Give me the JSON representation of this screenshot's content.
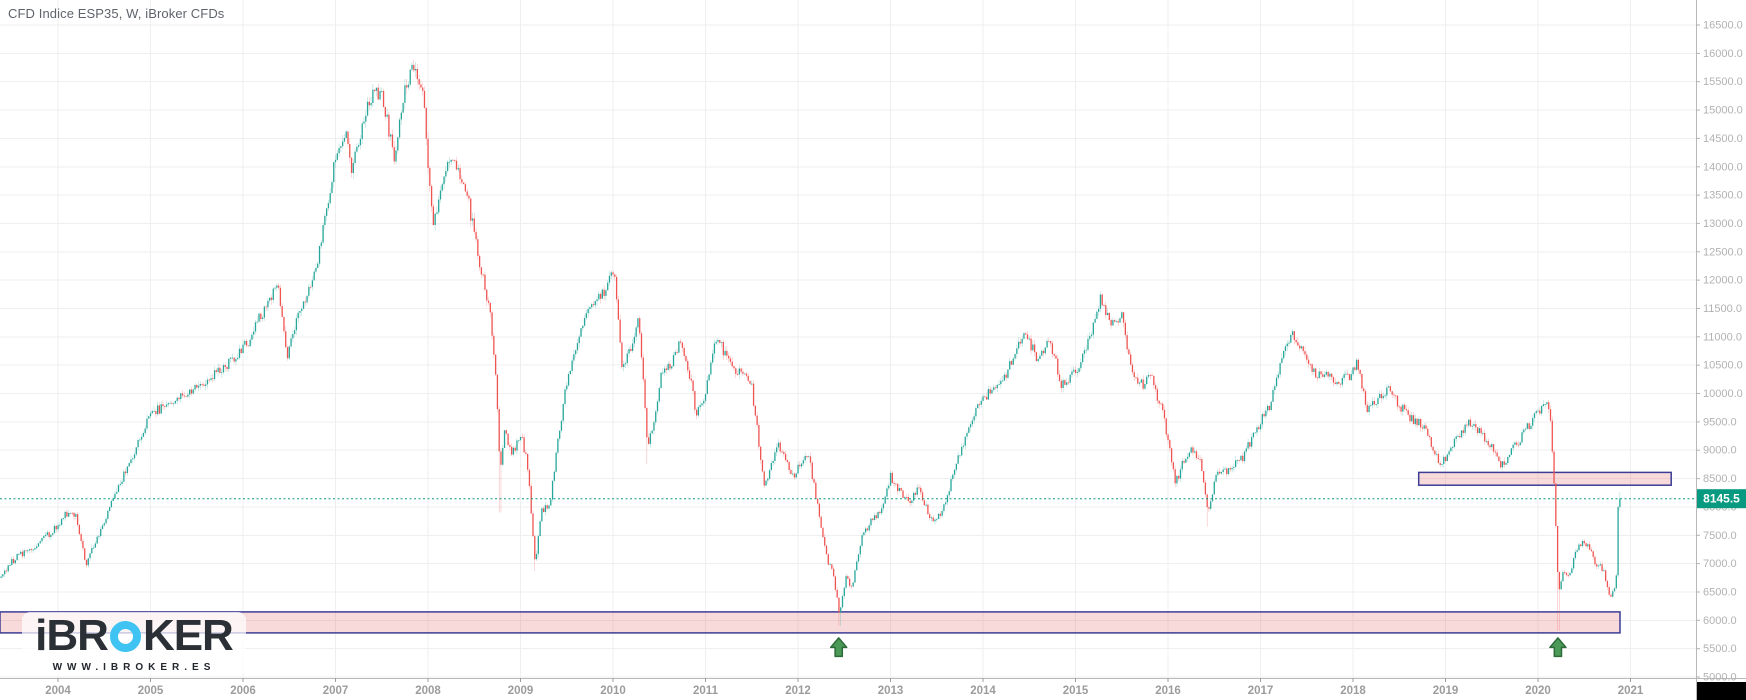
{
  "window": {
    "title": "CFD Indice ESP35, W, iBroker CFDs"
  },
  "watermark": {
    "brand_full": "iBROKER",
    "brand_prefix": "iBR",
    "brand_o": "O",
    "brand_suffix": "KER",
    "url": "WWW.IBROKER.ES"
  },
  "colors": {
    "background": "#ffffff",
    "grid": "#efefef",
    "axis_line": "#b8b8b8",
    "price_tick_text": "#b2b2b2",
    "year_tick_text": "#9c9c9c",
    "title_text": "#5f646b",
    "up_body": "#26a69a",
    "down_body": "#ef5350",
    "up_wick": "rgba(38,166,154,0.45)",
    "down_wick": "rgba(239,83,80,0.45)",
    "price_line": "#089981",
    "tag_bg": "#089981",
    "tag_text": "#ffffff",
    "zone_fill": "rgba(225,87,92,0.22)",
    "zone_border": "#3c3c96",
    "arrow_fill": "#4c9a58",
    "arrow_stroke": "#2e6b3a",
    "black_box": "#000000"
  },
  "price_axis": {
    "ticks": [
      {
        "value": 16500,
        "label": "16500.0"
      },
      {
        "value": 16000,
        "label": "16000.0"
      },
      {
        "value": 15500,
        "label": "15500.0"
      },
      {
        "value": 15000,
        "label": "15000.0"
      },
      {
        "value": 14500,
        "label": "14500.0"
      },
      {
        "value": 14000,
        "label": "14000.0"
      },
      {
        "value": 13500,
        "label": "13500.0"
      },
      {
        "value": 13000,
        "label": "13000.0"
      },
      {
        "value": 12500,
        "label": "12500.0"
      },
      {
        "value": 12000,
        "label": "12000.0"
      },
      {
        "value": 11500,
        "label": "11500.0"
      },
      {
        "value": 11000,
        "label": "11000.0"
      },
      {
        "value": 10500,
        "label": "10500.0"
      },
      {
        "value": 10000,
        "label": "10000.0"
      },
      {
        "value": 9500,
        "label": "9500.0"
      },
      {
        "value": 9000,
        "label": "9000.0"
      },
      {
        "value": 8500,
        "label": "8500.0"
      },
      {
        "value": 8000,
        "label": "8000.0"
      },
      {
        "value": 7500,
        "label": "7500.0"
      },
      {
        "value": 7000,
        "label": "7000.0"
      },
      {
        "value": 6500,
        "label": "6500.0"
      },
      {
        "value": 6000,
        "label": "6000.0"
      },
      {
        "value": 5500,
        "label": "5500.0"
      },
      {
        "value": 5000,
        "label": "5000.0"
      }
    ]
  },
  "time_axis": {
    "years": [
      "2004",
      "2005",
      "2006",
      "2007",
      "2008",
      "2009",
      "2010",
      "2011",
      "2012",
      "2013",
      "2014",
      "2015",
      "2016",
      "2017",
      "2018",
      "2019",
      "2020",
      "2021"
    ]
  },
  "chart_data": {
    "type": "candlestick",
    "symbol": "CFD Indice ESP35",
    "timeframe": "W",
    "provider": "iBroker CFDs",
    "last_price": 8145.5,
    "last_price_label": "8145.5",
    "x_domain_years": [
      2003.373,
      2021.708
    ],
    "y_domain": [
      4983,
      16941
    ],
    "price_line": {
      "value": 8145.5,
      "style": "dotted"
    },
    "zones": [
      {
        "name": "support-zone",
        "t_start": 2003.373,
        "t_end": 2020.886,
        "price_top": 6148,
        "price_bottom": 5778
      },
      {
        "name": "resistance-zone",
        "t_start": 2018.71,
        "t_end": 2021.44,
        "price_top": 8610,
        "price_bottom": 8385
      }
    ],
    "arrows_up": [
      {
        "t": 2012.44,
        "price_tip": 5690
      },
      {
        "t": 2020.215,
        "price_tip": 5690
      }
    ],
    "candles": {
      "start_t": 2003.385,
      "weeks_per_candle": 1,
      "count": 911,
      "seed": 5,
      "noise_close_pct": 0.018,
      "noise_wick_pct": 0.008,
      "spike_lows": [
        [
          2008.78,
          7905
        ],
        [
          2009.16,
          6870
        ],
        [
          2010.37,
          8750
        ],
        [
          2012.45,
          5905
        ],
        [
          2016.43,
          7650
        ],
        [
          2020.22,
          5815
        ]
      ],
      "keypoints": [
        [
          2003.385,
          6750
        ],
        [
          2003.5,
          7050
        ],
        [
          2003.65,
          7200
        ],
        [
          2003.8,
          7350
        ],
        [
          2003.95,
          7600
        ],
        [
          2004.1,
          7900
        ],
        [
          2004.2,
          7850
        ],
        [
          2004.3,
          7000
        ],
        [
          2004.45,
          7550
        ],
        [
          2004.6,
          8200
        ],
        [
          2004.85,
          9050
        ],
        [
          2005.0,
          9650
        ],
        [
          2005.3,
          9900
        ],
        [
          2005.6,
          10250
        ],
        [
          2005.9,
          10600
        ],
        [
          2006.05,
          10900
        ],
        [
          2006.2,
          11400
        ],
        [
          2006.38,
          11900
        ],
        [
          2006.47,
          10650
        ],
        [
          2006.6,
          11350
        ],
        [
          2006.8,
          12300
        ],
        [
          2007.0,
          14150
        ],
        [
          2007.1,
          14650
        ],
        [
          2007.17,
          13950
        ],
        [
          2007.3,
          14800
        ],
        [
          2007.42,
          15450
        ],
        [
          2007.52,
          15150
        ],
        [
          2007.63,
          14150
        ],
        [
          2007.75,
          15350
        ],
        [
          2007.85,
          15850
        ],
        [
          2007.95,
          15250
        ],
        [
          2008.05,
          12950
        ],
        [
          2008.12,
          13450
        ],
        [
          2008.25,
          14250
        ],
        [
          2008.4,
          13700
        ],
        [
          2008.55,
          12400
        ],
        [
          2008.68,
          11300
        ],
        [
          2008.74,
          10200
        ],
        [
          2008.78,
          8650
        ],
        [
          2008.83,
          9450
        ],
        [
          2008.9,
          8900
        ],
        [
          2009.0,
          9300
        ],
        [
          2009.08,
          8700
        ],
        [
          2009.16,
          7000
        ],
        [
          2009.22,
          7900
        ],
        [
          2009.32,
          8100
        ],
        [
          2009.4,
          9100
        ],
        [
          2009.5,
          10200
        ],
        [
          2009.62,
          11000
        ],
        [
          2009.75,
          11500
        ],
        [
          2009.9,
          11800
        ],
        [
          2010.02,
          12150
        ],
        [
          2010.1,
          10450
        ],
        [
          2010.2,
          10800
        ],
        [
          2010.28,
          11350
        ],
        [
          2010.37,
          9100
        ],
        [
          2010.43,
          9400
        ],
        [
          2010.52,
          10300
        ],
        [
          2010.62,
          10500
        ],
        [
          2010.72,
          10900
        ],
        [
          2010.82,
          10400
        ],
        [
          2010.9,
          9650
        ],
        [
          2011.0,
          9950
        ],
        [
          2011.1,
          11000
        ],
        [
          2011.2,
          10750
        ],
        [
          2011.32,
          10400
        ],
        [
          2011.42,
          10300
        ],
        [
          2011.5,
          10100
        ],
        [
          2011.58,
          9100
        ],
        [
          2011.63,
          8350
        ],
        [
          2011.7,
          8700
        ],
        [
          2011.78,
          9150
        ],
        [
          2011.85,
          8850
        ],
        [
          2011.95,
          8550
        ],
        [
          2012.05,
          8800
        ],
        [
          2012.12,
          8900
        ],
        [
          2012.2,
          8100
        ],
        [
          2012.3,
          7150
        ],
        [
          2012.38,
          6800
        ],
        [
          2012.45,
          6100
        ],
        [
          2012.52,
          6750
        ],
        [
          2012.58,
          6550
        ],
        [
          2012.68,
          7400
        ],
        [
          2012.8,
          7800
        ],
        [
          2012.9,
          7950
        ],
        [
          2013.0,
          8550
        ],
        [
          2013.1,
          8250
        ],
        [
          2013.2,
          8100
        ],
        [
          2013.3,
          8350
        ],
        [
          2013.45,
          7750
        ],
        [
          2013.55,
          7900
        ],
        [
          2013.7,
          8700
        ],
        [
          2013.85,
          9450
        ],
        [
          2014.0,
          9950
        ],
        [
          2014.12,
          10050
        ],
        [
          2014.25,
          10350
        ],
        [
          2014.45,
          11150
        ],
        [
          2014.58,
          10600
        ],
        [
          2014.72,
          10950
        ],
        [
          2014.85,
          10150
        ],
        [
          2015.0,
          10400
        ],
        [
          2015.12,
          10800
        ],
        [
          2015.27,
          11650
        ],
        [
          2015.4,
          11250
        ],
        [
          2015.5,
          11400
        ],
        [
          2015.62,
          10300
        ],
        [
          2015.72,
          10150
        ],
        [
          2015.82,
          10300
        ],
        [
          2015.95,
          9600
        ],
        [
          2016.08,
          8400
        ],
        [
          2016.18,
          8850
        ],
        [
          2016.28,
          9050
        ],
        [
          2016.35,
          8750
        ],
        [
          2016.43,
          7950
        ],
        [
          2016.52,
          8550
        ],
        [
          2016.65,
          8650
        ],
        [
          2016.8,
          8850
        ],
        [
          2016.95,
          9350
        ],
        [
          2017.1,
          9800
        ],
        [
          2017.25,
          10800
        ],
        [
          2017.35,
          11050
        ],
        [
          2017.48,
          10700
        ],
        [
          2017.6,
          10350
        ],
        [
          2017.72,
          10300
        ],
        [
          2017.85,
          10200
        ],
        [
          2017.95,
          10300
        ],
        [
          2018.05,
          10550
        ],
        [
          2018.15,
          9750
        ],
        [
          2018.25,
          9850
        ],
        [
          2018.38,
          10100
        ],
        [
          2018.5,
          9800
        ],
        [
          2018.62,
          9550
        ],
        [
          2018.75,
          9450
        ],
        [
          2018.85,
          9100
        ],
        [
          2018.93,
          8750
        ],
        [
          2019.02,
          8900
        ],
        [
          2019.12,
          9200
        ],
        [
          2019.25,
          9500
        ],
        [
          2019.38,
          9300
        ],
        [
          2019.5,
          9100
        ],
        [
          2019.6,
          8700
        ],
        [
          2019.7,
          8950
        ],
        [
          2019.82,
          9250
        ],
        [
          2019.95,
          9550
        ],
        [
          2020.05,
          9800
        ],
        [
          2020.1,
          9850
        ],
        [
          2020.14,
          9450
        ],
        [
          2020.18,
          8300
        ],
        [
          2020.22,
          6500
        ],
        [
          2020.27,
          6900
        ],
        [
          2020.33,
          6750
        ],
        [
          2020.4,
          7200
        ],
        [
          2020.48,
          7400
        ],
        [
          2020.55,
          7300
        ],
        [
          2020.62,
          7000
        ],
        [
          2020.7,
          6900
        ],
        [
          2020.78,
          6450
        ],
        [
          2020.815,
          6550
        ],
        [
          2020.845,
          6650
        ],
        [
          2020.865,
          7950
        ],
        [
          2020.885,
          8145.5
        ]
      ]
    }
  }
}
